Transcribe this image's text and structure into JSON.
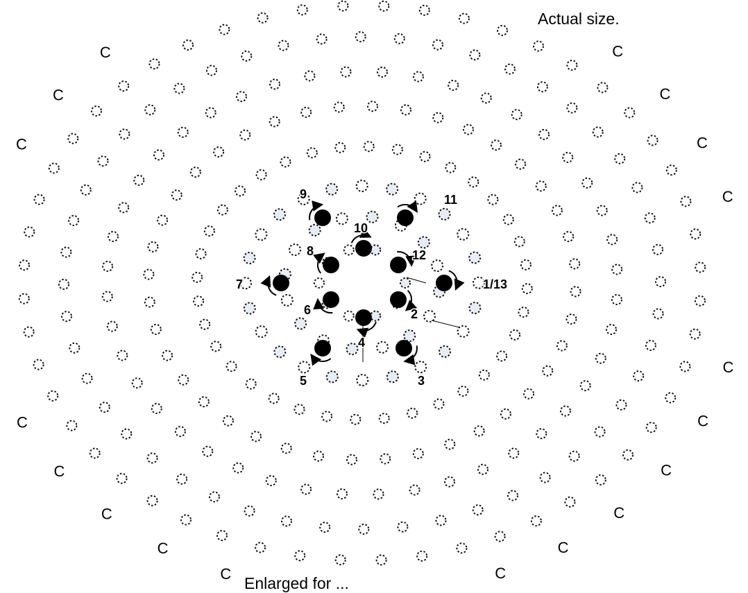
{
  "annotations": {
    "top_note": "Actual size.",
    "bottom_note": "Enlarged for ..."
  },
  "diagram": {
    "labels": [
      "1/13",
      "2",
      "3",
      "4",
      "5",
      "6",
      "7",
      "8",
      "9",
      "10",
      "11",
      "12"
    ],
    "marker_count": 12,
    "outer_ring_glyph": "C",
    "colors": {
      "marker": "#000000",
      "dot_stroke": "#111111",
      "dot_fill_light": "#e8edf5",
      "dot_fill_plain": "#ffffff",
      "background": "#ffffff"
    }
  }
}
